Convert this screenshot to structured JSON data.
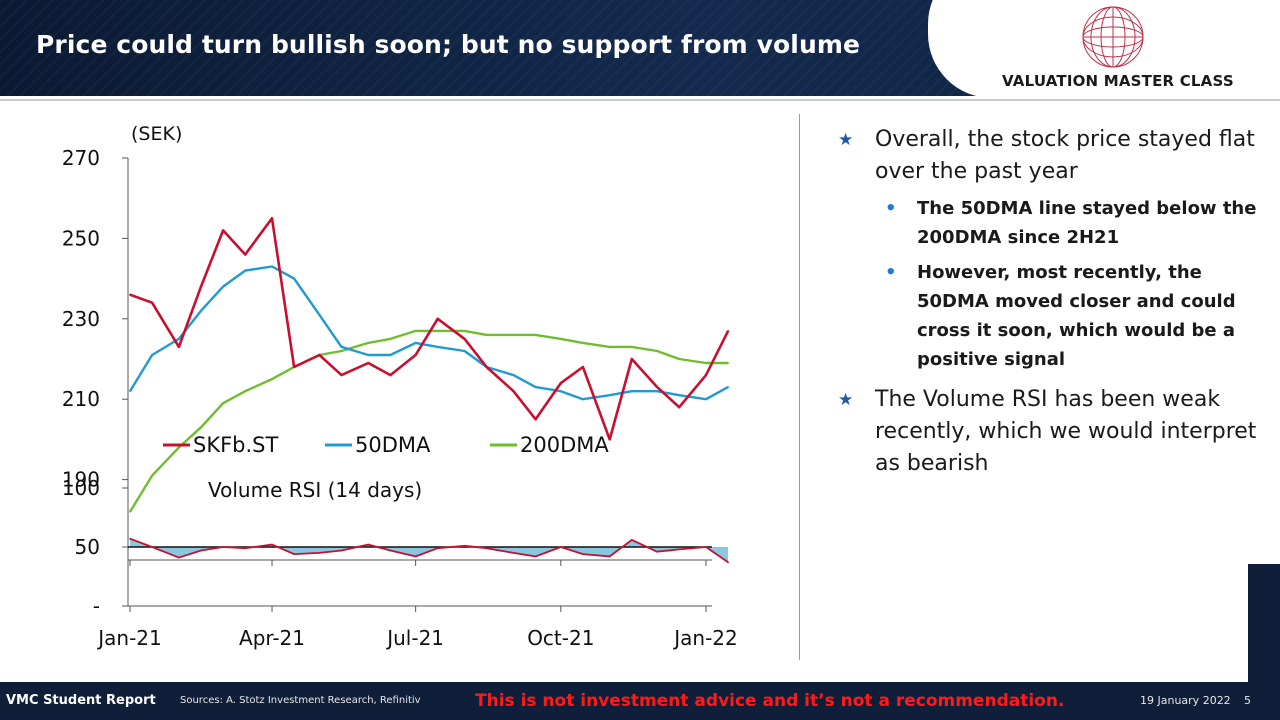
{
  "slide": {
    "title": "Price could turn bullish soon; but no support from volume",
    "logo_text": "VALUATION MASTER CLASS",
    "page_number": "5",
    "date": "19 January 2022"
  },
  "footer": {
    "report_label": "VMC Student Report",
    "sources": "Sources: A. Stotz Investment Research, Refinitiv",
    "disclaimer": "This is not investment advice and it’s not a recommendation."
  },
  "bullets": [
    {
      "text": "Overall, the stock price stayed flat over the past year",
      "sub": [
        "The 50DMA line stayed below the 200DMA since 2H21",
        "However, most recently, the 50DMA moved closer and could cross it soon, which would be a positive signal"
      ]
    },
    {
      "text": "The Volume RSI has been weak recently, which we would interpret as bearish",
      "sub": []
    }
  ],
  "icons": {
    "bullet_main": "star-icon",
    "bullet_sub": "dot-icon"
  },
  "colors": {
    "header_bg": "#0f1f3a",
    "disclaimer": "#ff1a1a",
    "price": "#c8102e",
    "dma50": "#1f9bd0",
    "dma200": "#6fbe2e",
    "rsi_fill": "#2a9ac8"
  },
  "chart_data": [
    {
      "type": "line",
      "ylabel": "(SEK)",
      "ylim": [
        170,
        270
      ],
      "yticks": [
        190,
        210,
        230,
        250,
        270
      ],
      "x_dates": [
        "2021-01-01",
        "2021-01-15",
        "2021-02-01",
        "2021-02-15",
        "2021-03-01",
        "2021-03-15",
        "2021-04-01",
        "2021-04-15",
        "2021-05-01",
        "2021-05-15",
        "2021-06-01",
        "2021-06-15",
        "2021-07-01",
        "2021-07-15",
        "2021-08-01",
        "2021-08-15",
        "2021-09-01",
        "2021-09-15",
        "2021-10-01",
        "2021-10-15",
        "2021-11-01",
        "2021-11-15",
        "2021-12-01",
        "2021-12-15",
        "2022-01-01",
        "2022-01-15"
      ],
      "series": [
        {
          "name": "SKFb.ST",
          "color": "#c8102e",
          "values": [
            236,
            234,
            223,
            238,
            252,
            246,
            255,
            218,
            221,
            216,
            219,
            216,
            221,
            230,
            225,
            218,
            212,
            205,
            214,
            218,
            200,
            220,
            213,
            208,
            216,
            227
          ]
        },
        {
          "name": "50DMA",
          "color": "#1f9bd0",
          "values": [
            212,
            221,
            225,
            232,
            238,
            242,
            243,
            240,
            231,
            223,
            221,
            221,
            224,
            223,
            222,
            218,
            216,
            213,
            212,
            210,
            211,
            212,
            212,
            211,
            210,
            213
          ]
        },
        {
          "name": "200DMA",
          "color": "#6fbe2e",
          "values": [
            182,
            191,
            198,
            203,
            209,
            212,
            215,
            218,
            221,
            222,
            224,
            225,
            227,
            227,
            227,
            226,
            226,
            226,
            225,
            224,
            223,
            223,
            222,
            220,
            219,
            219
          ]
        }
      ],
      "legend": "bottom-inside"
    },
    {
      "type": "area",
      "title": "Volume RSI (14 days)",
      "ylim": [
        0,
        100
      ],
      "yticks": [
        {
          "value": 0,
          "label": "-"
        },
        {
          "value": 50,
          "label": "50"
        },
        {
          "value": 100,
          "label": "100"
        }
      ],
      "baseline": 50,
      "xticks": [
        "Jan-21",
        "Apr-21",
        "Jul-21",
        "Oct-21",
        "Jan-22"
      ],
      "x_dates": [
        "2021-01-01",
        "2021-01-15",
        "2021-02-01",
        "2021-02-15",
        "2021-03-01",
        "2021-03-15",
        "2021-04-01",
        "2021-04-15",
        "2021-05-01",
        "2021-05-15",
        "2021-06-01",
        "2021-06-15",
        "2021-07-01",
        "2021-07-15",
        "2021-08-01",
        "2021-08-15",
        "2021-09-01",
        "2021-09-15",
        "2021-10-01",
        "2021-10-15",
        "2021-11-01",
        "2021-11-15",
        "2021-12-01",
        "2021-12-15",
        "2022-01-01",
        "2022-01-15"
      ],
      "series": [
        {
          "name": "Volume RSI",
          "color": "#c8102e",
          "values": [
            57,
            50,
            41,
            47,
            50,
            49,
            52,
            44,
            45,
            47,
            52,
            47,
            42,
            49,
            51,
            49,
            45,
            42,
            50,
            44,
            42,
            56,
            46,
            48,
            50,
            37
          ]
        }
      ]
    }
  ]
}
